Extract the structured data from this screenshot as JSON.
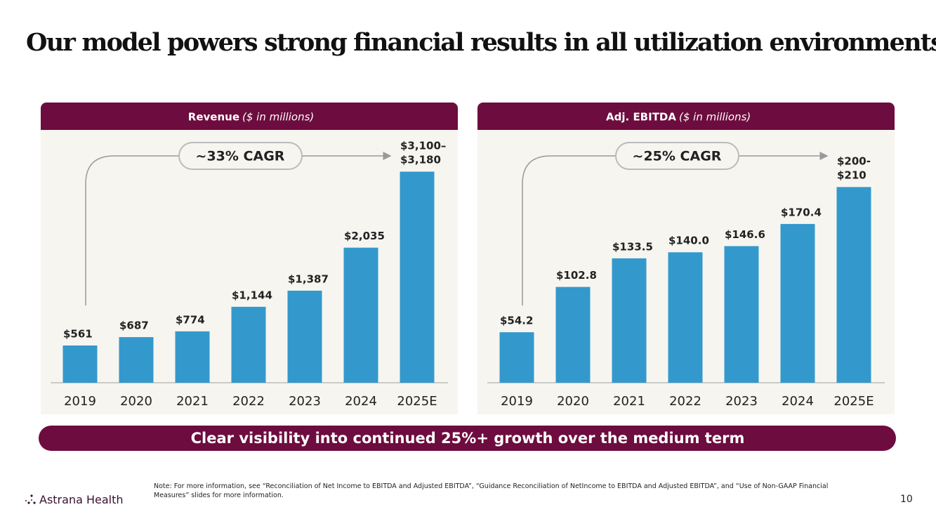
{
  "slide": {
    "title": "Our model powers strong financial results in all utilization environments",
    "banner": "Clear visibility into continued 25%+ growth over the medium term",
    "note": "Note: For more information, see “Reconciliation of Net Income to EBITDA and Adjusted EBITDA”, “Guidance Reconciliation of NetIncome to EBITDA and Adjusted EBITDA”, and “Use of Non-GAAP Financial Measures” slides for more information.",
    "logo": "Astrana Health",
    "page_number": 10
  },
  "chart_data": [
    {
      "type": "bar",
      "title": "Revenue",
      "subtitle": "($ in millions)",
      "annotation": "~33% CAGR",
      "categories": [
        "2019",
        "2020",
        "2021",
        "2022",
        "2023",
        "2024",
        "2025E"
      ],
      "values": [
        561,
        687,
        774,
        1144,
        1387,
        2035,
        3180
      ],
      "value_labels": [
        "$561",
        "$687",
        "$774",
        "$1,144",
        "$1,387",
        "$2,035",
        "$3,100–\n$3,180"
      ],
      "color": "#3399cc",
      "ylim": [
        0,
        3650
      ]
    },
    {
      "type": "bar",
      "title": "Adj. EBITDA",
      "subtitle": "($ in millions)",
      "annotation": "~25% CAGR",
      "categories": [
        "2019",
        "2020",
        "2021",
        "2022",
        "2023",
        "2024",
        "2025E"
      ],
      "values": [
        54.2,
        102.8,
        133.5,
        140.0,
        146.6,
        170.4,
        210
      ],
      "value_labels": [
        "$54.2",
        "$102.8",
        "$133.5",
        "$140.0",
        "$146.6",
        "$170.4",
        "$200-\n$210"
      ],
      "color": "#3399cc",
      "ylim": [
        0,
        260
      ]
    }
  ]
}
